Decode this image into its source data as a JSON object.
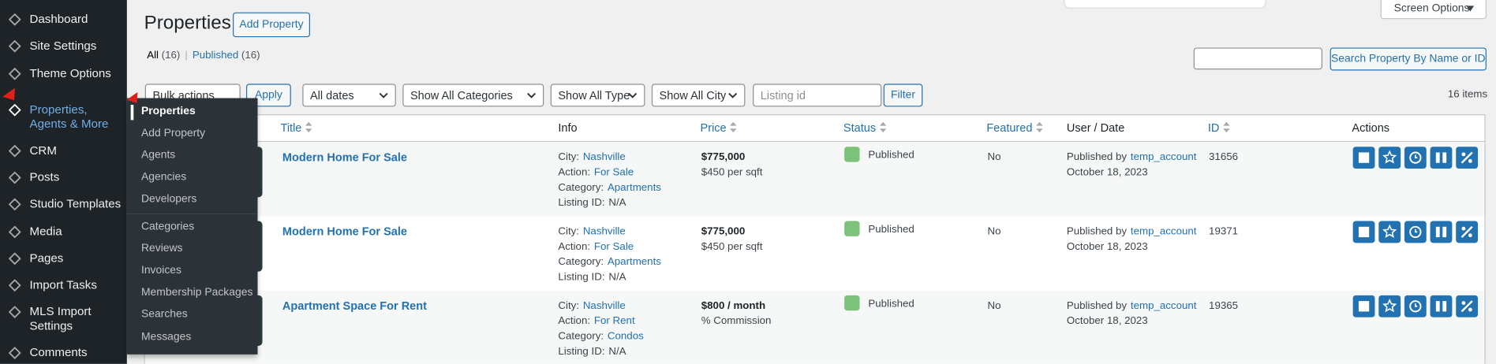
{
  "sidebar": {
    "items": [
      "Dashboard",
      "Site Settings",
      "Theme Options",
      "Properties, Agents & More",
      "CRM",
      "Posts",
      "Studio Templates",
      "Media",
      "Pages",
      "Import Tasks",
      "MLS Import Settings",
      "Comments"
    ]
  },
  "submenu": {
    "items": [
      "Properties",
      "Add Property",
      "Agents",
      "Agencies",
      "Developers",
      "Categories",
      "Reviews",
      "Invoices",
      "Membership Packages",
      "Searches",
      "Messages"
    ]
  },
  "header": {
    "title": "Properties",
    "add_button": "Add Property",
    "screen_options": "Screen Options"
  },
  "views": [
    {
      "label": "All",
      "count": "(16)"
    },
    {
      "label": "Published",
      "count": "(16)"
    }
  ],
  "views_separator": "|",
  "search": {
    "button": "Search Property By Name or ID"
  },
  "filters": {
    "bulk_actions": "Bulk actions",
    "apply": "Apply",
    "dates": "All dates",
    "categories": "Show All Categories",
    "type": "Show All Type",
    "city": "Show All City",
    "listing_placeholder": "Listing id",
    "filter": "Filter",
    "items_count": "16 items"
  },
  "table": {
    "columns": [
      {
        "label": "Title",
        "sortable": true
      },
      {
        "label": "Info",
        "sortable": false
      },
      {
        "label": "Price",
        "sortable": true
      },
      {
        "label": "Status",
        "sortable": true
      },
      {
        "label": "Featured",
        "sortable": true
      },
      {
        "label": "User / Date",
        "sortable": false
      },
      {
        "label": "ID",
        "sortable": true
      },
      {
        "label": "Actions",
        "sortable": false
      }
    ],
    "info_labels": [
      "City:",
      "Action:",
      "Category:",
      "Listing ID:"
    ],
    "published_by": "Published by",
    "rows": [
      {
        "title": "Modern Home For Sale",
        "city": "Nashville",
        "action": "For Sale",
        "category": "Apartments",
        "listing_id": "N/A",
        "price": "$775,000",
        "price_note": "$450 per sqft",
        "status": "Published",
        "featured": "No",
        "user": "temp_account",
        "date": "October 18, 2023",
        "id": "31656"
      },
      {
        "title": "Modern Home For Sale",
        "city": "Nashville",
        "action": "For Sale",
        "category": "Apartments",
        "listing_id": "N/A",
        "price": "$775,000",
        "price_note": "$450 per sqft",
        "status": "Published",
        "featured": "No",
        "user": "temp_account",
        "date": "October 18, 2023",
        "id": "19371"
      },
      {
        "title": "Apartment Space For Rent",
        "city": "Nashville",
        "action": "For Rent",
        "category": "Condos",
        "listing_id": "N/A",
        "price": "$800 / month",
        "price_note": "% Commission",
        "status": "Published",
        "featured": "No",
        "user": "temp_account",
        "date": "October 18, 2023",
        "id": "19365"
      }
    ]
  }
}
